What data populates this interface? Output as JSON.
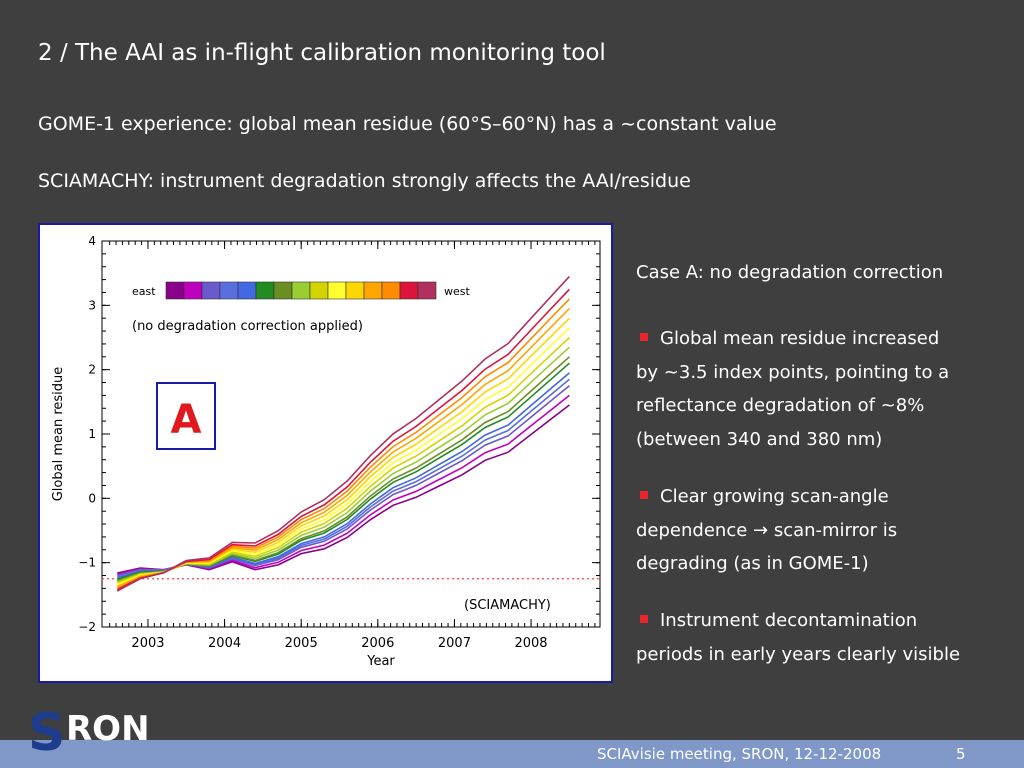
{
  "slide": {
    "title": "2 / The AAI as in-flight calibration monitoring tool",
    "line1": "GOME-1 experience: global mean residue (60°S–60°N) has a ~constant value",
    "line2": "SCIAMACHY: instrument degradation strongly affects the AAI/residue"
  },
  "right_panel": {
    "case_heading": "Case A: no degradation correction",
    "bullets": [
      {
        "line1": "Global mean residue increased",
        "line2": "by ~3.5 index points, pointing to a",
        "line3": "reflectance degradation of ~8%",
        "line4": "(between 340 and 380 nm)"
      },
      {
        "line1": "Clear growing scan-angle",
        "line2": "dependence → scan-mirror is",
        "line3": "degrading (as in GOME-1)"
      },
      {
        "line1": "Instrument decontamination",
        "line2": "periods in early years clearly visible"
      }
    ]
  },
  "footer": {
    "text": "SCIAvisie meeting, SRON, 12-12-2008",
    "page": "5",
    "logo_text": "SRON",
    "bar_color": "#7f98c8",
    "bullet_color": "#e8242d"
  },
  "chart_data": {
    "type": "line",
    "xlabel": "Year",
    "ylabel": "Global mean residue",
    "xlim": [
      2002.4,
      2008.9
    ],
    "ylim": [
      -2,
      4
    ],
    "x_ticks": [
      "2003",
      "2004",
      "2005",
      "2006",
      "2007",
      "2008"
    ],
    "y_ticks": [
      "4",
      "3",
      "2",
      "1",
      "0",
      "−1",
      "−2"
    ],
    "annotation": "(no degradation correction applied)",
    "instrument_label": "(SCIAMACHY)",
    "case_label": "A",
    "legend": {
      "left_label": "east",
      "right_label": "west",
      "colors": [
        "#8b008b",
        "#c000c0",
        "#6a5acd",
        "#5a6ee0",
        "#4169e1",
        "#228b22",
        "#6b8e23",
        "#9acd32",
        "#d4d400",
        "#ffff30",
        "#ffd700",
        "#ffa500",
        "#ff8c00",
        "#dc143c",
        "#b03060"
      ]
    },
    "reference_level": -1.25,
    "reference_color": "#ff4040",
    "series": [
      {
        "color": "#8b008b",
        "end_offset": -0.35
      },
      {
        "color": "#c000c0",
        "end_offset": -0.2
      },
      {
        "color": "#6a5acd",
        "end_offset": -0.05
      },
      {
        "color": "#5a6ee0",
        "end_offset": 0.05
      },
      {
        "color": "#4169e1",
        "end_offset": 0.15
      },
      {
        "color": "#228b22",
        "end_offset": 0.3
      },
      {
        "color": "#6b8e23",
        "end_offset": 0.4
      },
      {
        "color": "#9acd32",
        "end_offset": 0.55
      },
      {
        "color": "#d4d400",
        "end_offset": 0.7
      },
      {
        "color": "#ffff30",
        "end_offset": 0.85
      },
      {
        "color": "#ffd700",
        "end_offset": 1.0
      },
      {
        "color": "#ffa500",
        "end_offset": 1.15
      },
      {
        "color": "#ff8c00",
        "end_offset": 1.3
      },
      {
        "color": "#dc143c",
        "end_offset": 1.45
      },
      {
        "color": "#b03060",
        "end_offset": 1.65
      }
    ],
    "base_curve": {
      "x": [
        2002.6,
        2002.9,
        2003.2,
        2003.5,
        2003.8,
        2004.1,
        2004.4,
        2004.7,
        2005.0,
        2005.3,
        2005.6,
        2005.9,
        2006.2,
        2006.5,
        2006.8,
        2007.1,
        2007.4,
        2007.7,
        2008.0,
        2008.3,
        2008.5
      ],
      "y": [
        -1.3,
        -1.2,
        -1.2,
        -1.1,
        -1.15,
        -1.0,
        -1.1,
        -1.0,
        -0.8,
        -0.7,
        -0.5,
        -0.2,
        0.05,
        0.2,
        0.4,
        0.6,
        0.85,
        1.0,
        1.3,
        1.6,
        1.8
      ]
    }
  }
}
